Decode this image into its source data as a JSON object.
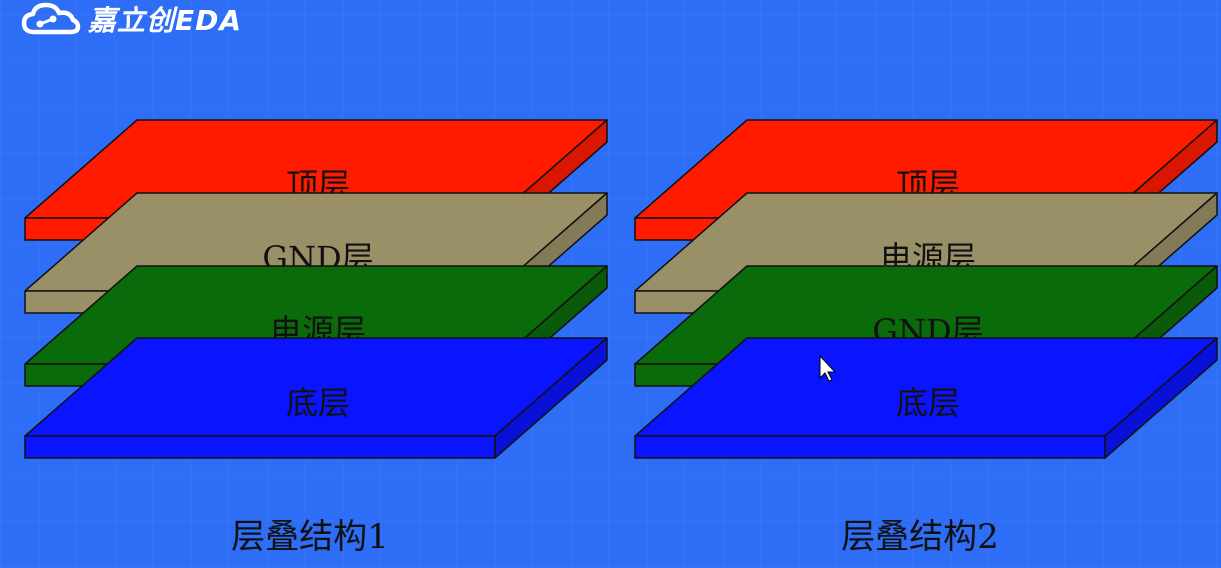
{
  "logo": {
    "text": "嘉立创EDA",
    "icon": "cloud-circuit-icon"
  },
  "stacks": [
    {
      "caption": "层叠结构1",
      "layers": [
        {
          "label": "顶层",
          "color": "#ff1a00"
        },
        {
          "label": "GND层",
          "color": "#9a9068"
        },
        {
          "label": "电源层",
          "color": "#0a6b0a"
        },
        {
          "label": "底层",
          "color": "#0a14ff"
        }
      ]
    },
    {
      "caption": "层叠结构2",
      "layers": [
        {
          "label": "顶层",
          "color": "#ff1a00"
        },
        {
          "label": "电源层",
          "color": "#9a9068"
        },
        {
          "label": "GND层",
          "color": "#0a6b0a"
        },
        {
          "label": "底层",
          "color": "#0a14ff"
        }
      ]
    }
  ],
  "colors": {
    "background": "#2e6df5",
    "outline": "#111111"
  }
}
